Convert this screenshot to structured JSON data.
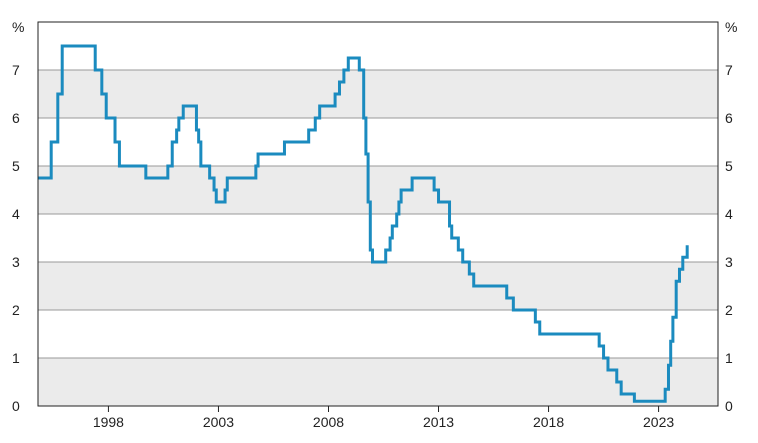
{
  "chart_data": {
    "type": "line",
    "step": true,
    "title": "",
    "xlabel": "",
    "ylabel": "%",
    "ylabel_right": "%",
    "xlim": [
      1994.8,
      2025.7
    ],
    "ylim": [
      0,
      8
    ],
    "x_ticks": [
      1998,
      2003,
      2008,
      2013,
      2018,
      2023
    ],
    "x_tick_labels": [
      "1998",
      "2003",
      "2008",
      "2013",
      "2018",
      "2023"
    ],
    "y_ticks": [
      0,
      1,
      2,
      3,
      4,
      5,
      6,
      7
    ],
    "y_tick_labels": [
      "0",
      "1",
      "2",
      "3",
      "4",
      "5",
      "6",
      "7"
    ],
    "grid": "horizontal",
    "band_fill": "#ebebeb",
    "colors": {
      "line": "#1b8bbf",
      "grid": "#9a9a9a",
      "axis": "#222222",
      "band": "#ebebeb"
    },
    "series": [
      {
        "points": [
          [
            1994.8,
            4.75
          ],
          [
            1995.4,
            4.75
          ],
          [
            1995.4,
            5.5
          ],
          [
            1995.7,
            5.5
          ],
          [
            1995.7,
            6.5
          ],
          [
            1995.9,
            6.5
          ],
          [
            1995.9,
            7.5
          ],
          [
            1997.4,
            7.5
          ],
          [
            1997.4,
            7.0
          ],
          [
            1997.7,
            7.0
          ],
          [
            1997.7,
            6.5
          ],
          [
            1997.9,
            6.5
          ],
          [
            1997.9,
            6.0
          ],
          [
            1998.3,
            6.0
          ],
          [
            1998.3,
            5.5
          ],
          [
            1998.5,
            5.5
          ],
          [
            1998.5,
            5.0
          ],
          [
            1999.7,
            5.0
          ],
          [
            1999.7,
            4.75
          ],
          [
            2000.7,
            4.75
          ],
          [
            2000.7,
            5.0
          ],
          [
            2000.9,
            5.0
          ],
          [
            2000.9,
            5.5
          ],
          [
            2001.1,
            5.5
          ],
          [
            2001.1,
            5.75
          ],
          [
            2001.2,
            5.75
          ],
          [
            2001.2,
            6.0
          ],
          [
            2001.4,
            6.0
          ],
          [
            2001.4,
            6.25
          ],
          [
            2002.0,
            6.25
          ],
          [
            2002.0,
            5.75
          ],
          [
            2002.1,
            5.75
          ],
          [
            2002.1,
            5.5
          ],
          [
            2002.2,
            5.5
          ],
          [
            2002.2,
            5.0
          ],
          [
            2002.6,
            5.0
          ],
          [
            2002.6,
            4.75
          ],
          [
            2002.8,
            4.75
          ],
          [
            2002.8,
            4.5
          ],
          [
            2002.9,
            4.5
          ],
          [
            2002.9,
            4.25
          ],
          [
            2003.3,
            4.25
          ],
          [
            2003.3,
            4.5
          ],
          [
            2003.4,
            4.5
          ],
          [
            2003.4,
            4.75
          ],
          [
            2004.7,
            4.75
          ],
          [
            2004.7,
            5.0
          ],
          [
            2004.8,
            5.0
          ],
          [
            2004.8,
            5.25
          ],
          [
            2006.0,
            5.25
          ],
          [
            2006.0,
            5.5
          ],
          [
            2007.1,
            5.5
          ],
          [
            2007.1,
            5.75
          ],
          [
            2007.4,
            5.75
          ],
          [
            2007.4,
            6.0
          ],
          [
            2007.6,
            6.0
          ],
          [
            2007.6,
            6.25
          ],
          [
            2008.3,
            6.25
          ],
          [
            2008.3,
            6.5
          ],
          [
            2008.5,
            6.5
          ],
          [
            2008.5,
            6.75
          ],
          [
            2008.7,
            6.75
          ],
          [
            2008.7,
            7.0
          ],
          [
            2008.9,
            7.0
          ],
          [
            2008.9,
            7.25
          ],
          [
            2009.4,
            7.25
          ],
          [
            2009.4,
            7.0
          ],
          [
            2009.6,
            7.0
          ],
          [
            2009.6,
            6.0
          ],
          [
            2009.7,
            6.0
          ],
          [
            2009.7,
            5.25
          ],
          [
            2009.8,
            5.25
          ],
          [
            2009.8,
            4.25
          ],
          [
            2009.9,
            4.25
          ],
          [
            2009.9,
            3.25
          ],
          [
            2010.0,
            3.25
          ],
          [
            2010.0,
            3.0
          ],
          [
            2010.6,
            3.0
          ],
          [
            2010.6,
            3.25
          ],
          [
            2010.8,
            3.25
          ],
          [
            2010.8,
            3.5
          ],
          [
            2010.9,
            3.5
          ],
          [
            2010.9,
            3.75
          ],
          [
            2011.1,
            3.75
          ],
          [
            2011.1,
            4.0
          ],
          [
            2011.2,
            4.0
          ],
          [
            2011.2,
            4.25
          ],
          [
            2011.3,
            4.25
          ],
          [
            2011.3,
            4.5
          ],
          [
            2011.8,
            4.5
          ],
          [
            2011.8,
            4.75
          ],
          [
            2012.8,
            4.75
          ],
          [
            2012.8,
            4.5
          ],
          [
            2013.0,
            4.5
          ],
          [
            2013.0,
            4.25
          ],
          [
            2013.5,
            4.25
          ],
          [
            2013.5,
            3.75
          ],
          [
            2013.6,
            3.75
          ],
          [
            2013.6,
            3.5
          ],
          [
            2013.9,
            3.5
          ],
          [
            2013.9,
            3.25
          ],
          [
            2014.1,
            3.25
          ],
          [
            2014.1,
            3.0
          ],
          [
            2014.4,
            3.0
          ],
          [
            2014.4,
            2.75
          ],
          [
            2014.6,
            2.75
          ],
          [
            2014.6,
            2.5
          ],
          [
            2016.1,
            2.5
          ],
          [
            2016.1,
            2.25
          ],
          [
            2016.4,
            2.25
          ],
          [
            2016.4,
            2.0
          ],
          [
            2017.4,
            2.0
          ],
          [
            2017.4,
            1.75
          ],
          [
            2017.6,
            1.75
          ],
          [
            2017.6,
            1.5
          ],
          [
            2020.3,
            1.5
          ],
          [
            2020.3,
            1.25
          ],
          [
            2020.5,
            1.25
          ],
          [
            2020.5,
            1.0
          ],
          [
            2020.7,
            1.0
          ],
          [
            2020.7,
            0.75
          ],
          [
            2021.1,
            0.75
          ],
          [
            2021.1,
            0.5
          ],
          [
            2021.3,
            0.5
          ],
          [
            2021.3,
            0.25
          ],
          [
            2021.9,
            0.25
          ],
          [
            2021.9,
            0.1
          ],
          [
            2023.3,
            0.1
          ],
          [
            2023.3,
            0.35
          ],
          [
            2023.45,
            0.35
          ],
          [
            2023.45,
            0.85
          ],
          [
            2023.55,
            0.85
          ],
          [
            2023.55,
            1.35
          ],
          [
            2023.65,
            1.35
          ],
          [
            2023.65,
            1.85
          ],
          [
            2023.8,
            1.85
          ],
          [
            2023.8,
            2.6
          ],
          [
            2023.95,
            2.6
          ],
          [
            2023.95,
            2.85
          ],
          [
            2024.1,
            2.85
          ],
          [
            2024.1,
            3.1
          ],
          [
            2024.3,
            3.1
          ],
          [
            2024.3,
            3.35
          ]
        ]
      }
    ]
  }
}
